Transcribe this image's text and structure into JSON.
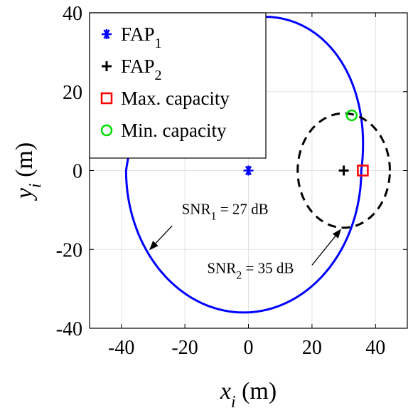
{
  "chart_data": {
    "type": "scatter",
    "xlabel": {
      "var": "x",
      "sub": "i",
      "unit": " (m)"
    },
    "ylabel": {
      "var": "y",
      "sub": "i",
      "unit": " (m)"
    },
    "xlim": [
      -50,
      50
    ],
    "ylim": [
      -40,
      40
    ],
    "xticks": [
      -40,
      -20,
      0,
      20,
      40
    ],
    "yticks": [
      -40,
      -20,
      0,
      20,
      40
    ],
    "grid": true,
    "legend": {
      "position": "top-left",
      "entries": [
        {
          "id": "fap1",
          "base": "FAP",
          "sub": "1",
          "color": "#0000ff",
          "marker": "asterisk"
        },
        {
          "id": "fap2",
          "base": "FAP",
          "sub": "2",
          "color": "#000000",
          "marker": "plus"
        },
        {
          "id": "maxcap",
          "base": "Max. capacity",
          "sub": "",
          "color": "#ff0000",
          "marker": "square"
        },
        {
          "id": "mincap",
          "base": "Min. capacity",
          "sub": "",
          "color": "#00dd00",
          "marker": "circle"
        }
      ]
    },
    "points": [
      {
        "series": "fap1",
        "x": 0,
        "y": 0
      },
      {
        "series": "fap2",
        "x": 30,
        "y": 0
      },
      {
        "series": "maxcap",
        "x": 36,
        "y": 0
      },
      {
        "series": "mincap",
        "x": 32.5,
        "y": 14
      }
    ],
    "contours": [
      {
        "id": "snr1",
        "color": "#0000ff",
        "style": "solid",
        "cx": -1.5,
        "cy": 0,
        "rx": 37,
        "ry": 36,
        "cx_top": 5,
        "cy_top": 3
      },
      {
        "id": "snr2",
        "color": "#000000",
        "style": "dashed",
        "cx": 30,
        "cy": 0,
        "rx": 14.5,
        "ry": 14.5
      }
    ],
    "annotations": [
      {
        "id": "snr1",
        "base": "SNR",
        "sub": "1",
        "rest": " = 27 dB",
        "text_x": -21,
        "text_y": -11,
        "arrow_from": [
          -24,
          -14
        ],
        "arrow_to": [
          -31,
          -20
        ]
      },
      {
        "id": "snr2",
        "base": "SNR",
        "sub": "2",
        "rest": " = 35 dB",
        "text_x": -13,
        "text_y": -26,
        "arrow_from": [
          20,
          -24
        ],
        "arrow_to": [
          29,
          -15
        ]
      }
    ]
  }
}
